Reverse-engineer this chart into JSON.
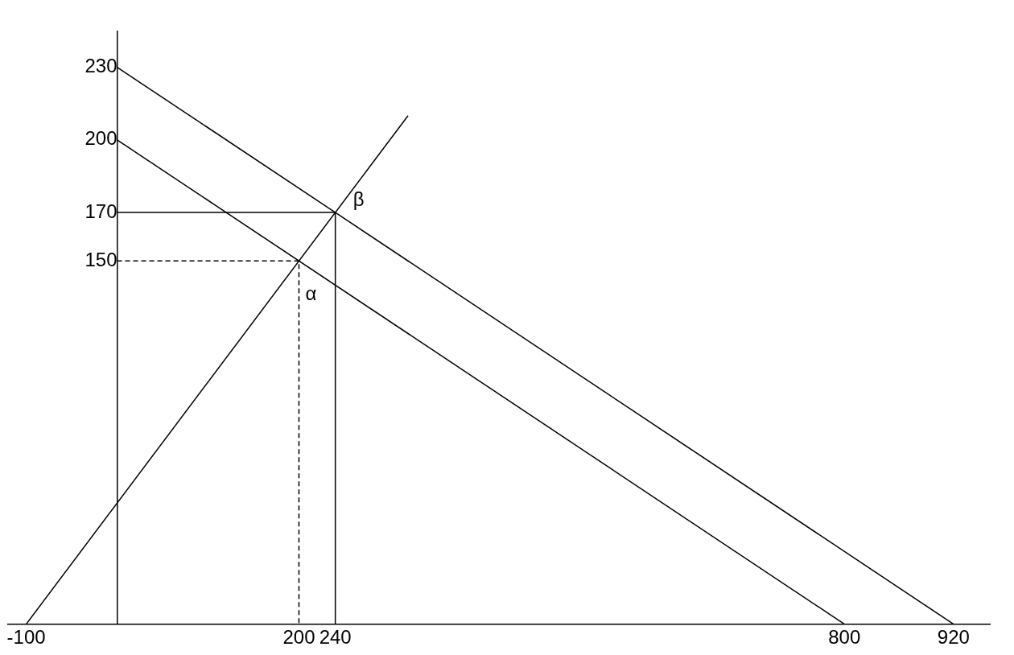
{
  "chart_data": {
    "type": "line",
    "xlim": [
      -120,
      960
    ],
    "ylim": [
      0,
      245
    ],
    "xticks": [
      -100,
      200,
      240,
      800,
      920
    ],
    "yticks": [
      150,
      170,
      200,
      230
    ],
    "grid": false,
    "legend": false,
    "marker": "none",
    "series": [
      {
        "color": "#000000",
        "x": [
          0,
          800
        ],
        "values": [
          200,
          0
        ]
      },
      {
        "color": "#000000",
        "x": [
          0,
          920
        ],
        "values": [
          230,
          0
        ]
      },
      {
        "color": "#000000",
        "x": [
          -100,
          320
        ],
        "values": [
          0,
          210
        ]
      },
      {
        "color": "#000000",
        "x": [
          0,
          240,
          240
        ],
        "values": [
          170,
          170,
          0
        ]
      },
      {
        "color": "#000000",
        "line_style": "dashed",
        "x": [
          0,
          200,
          200
        ],
        "values": [
          150,
          150,
          0
        ]
      }
    ],
    "annotations": [
      {
        "text": "α",
        "x": 200,
        "y": 150
      },
      {
        "text": "β",
        "x": 240,
        "y": 170
      }
    ]
  }
}
